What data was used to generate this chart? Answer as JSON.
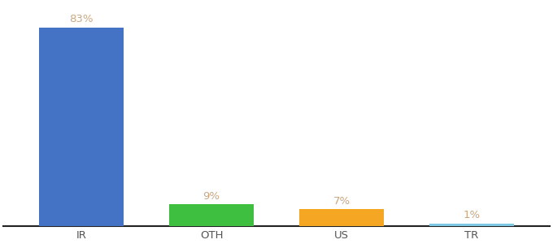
{
  "categories": [
    "IR",
    "OTH",
    "US",
    "TR"
  ],
  "values": [
    83,
    9,
    7,
    1
  ],
  "bar_colors": [
    "#4472C4",
    "#3EBF3F",
    "#F5A623",
    "#7EC8E3"
  ],
  "label_color": "#C8A882",
  "background_color": "#ffffff",
  "ylim": [
    0,
    93
  ],
  "bar_width": 0.65,
  "label_fontsize": 9.5,
  "tick_fontsize": 9.5,
  "bottom_spine_color": "#222222",
  "tick_label_color": "#555555"
}
